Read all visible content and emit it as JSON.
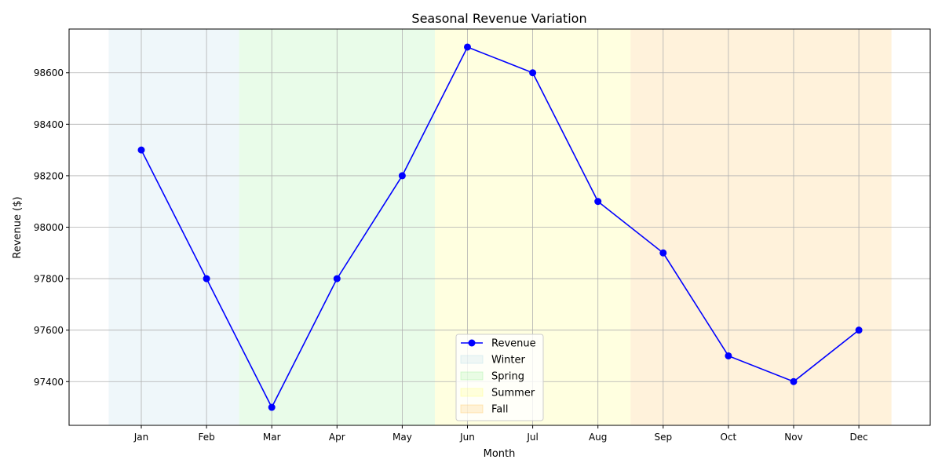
{
  "chart_data": {
    "type": "line",
    "title": "Seasonal Revenue Variation",
    "xlabel": "Month",
    "ylabel": "Revenue ($)",
    "categories": [
      "Jan",
      "Feb",
      "Mar",
      "Apr",
      "May",
      "Jun",
      "Jul",
      "Aug",
      "Sep",
      "Oct",
      "Nov",
      "Dec"
    ],
    "series": [
      {
        "name": "Revenue",
        "color": "#0000ff",
        "marker": "circle",
        "values": [
          98300,
          97800,
          97300,
          97800,
          98200,
          98700,
          98600,
          98100,
          97900,
          97500,
          97400,
          97600
        ]
      }
    ],
    "seasons": [
      {
        "name": "Winter",
        "start_month": "Jan",
        "end_month": "Feb",
        "color": "#add8e6"
      },
      {
        "name": "Spring",
        "start_month": "Mar",
        "end_month": "May",
        "color": "#90ee90"
      },
      {
        "name": "Summer",
        "start_month": "Jun",
        "end_month": "Aug",
        "color": "#ffff66"
      },
      {
        "name": "Fall",
        "start_month": "Sep",
        "end_month": "Dec",
        "color": "#ffc04d"
      }
    ],
    "y_ticks": [
      97400,
      97600,
      97800,
      98000,
      98200,
      98400,
      98600
    ],
    "ylim": [
      97230,
      98770
    ],
    "grid": true,
    "legend_position": "bottom-center"
  }
}
